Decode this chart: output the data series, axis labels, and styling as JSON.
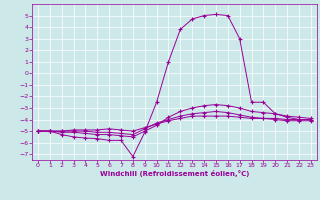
{
  "xlabel": "Windchill (Refroidissement éolien,°C)",
  "xlim": [
    -0.5,
    23.5
  ],
  "ylim": [
    -7.5,
    6.0
  ],
  "yticks": [
    5,
    4,
    3,
    2,
    1,
    0,
    -1,
    -2,
    -3,
    -4,
    -5,
    -6,
    -7
  ],
  "xticks": [
    0,
    1,
    2,
    3,
    4,
    5,
    6,
    7,
    8,
    9,
    10,
    11,
    12,
    13,
    14,
    15,
    16,
    17,
    18,
    19,
    20,
    21,
    22,
    23
  ],
  "bg_color": "#cce8e8",
  "line_color": "#990099",
  "grid_color": "#ffffff",
  "line1_x": [
    0,
    1,
    2,
    3,
    4,
    5,
    6,
    7,
    8,
    9,
    10,
    11,
    12,
    13,
    14,
    15,
    16,
    17,
    18,
    19,
    20,
    21,
    22,
    23
  ],
  "line1_y": [
    -5.0,
    -5.0,
    -5.3,
    -5.5,
    -5.6,
    -5.65,
    -5.8,
    -5.8,
    -7.2,
    -5.1,
    -2.5,
    1.0,
    3.8,
    4.7,
    5.0,
    5.1,
    5.0,
    3.0,
    -2.5,
    -2.5,
    -3.5,
    -3.8,
    -4.0,
    -4.0
  ],
  "line2_x": [
    0,
    1,
    2,
    3,
    4,
    5,
    6,
    7,
    8,
    9,
    10,
    11,
    12,
    13,
    14,
    15,
    16,
    17,
    18,
    19,
    20,
    21,
    22,
    23
  ],
  "line2_y": [
    -5.0,
    -5.0,
    -5.1,
    -5.1,
    -5.2,
    -5.3,
    -5.3,
    -5.4,
    -5.5,
    -5.0,
    -4.5,
    -3.8,
    -3.3,
    -3.0,
    -2.8,
    -2.7,
    -2.8,
    -3.0,
    -3.3,
    -3.4,
    -3.5,
    -3.7,
    -3.8,
    -3.9
  ],
  "line3_x": [
    0,
    1,
    2,
    3,
    4,
    5,
    6,
    7,
    8,
    9,
    10,
    11,
    12,
    13,
    14,
    15,
    16,
    17,
    18,
    19,
    20,
    21,
    22,
    23
  ],
  "line3_y": [
    -5.0,
    -5.0,
    -5.0,
    -5.0,
    -5.0,
    -5.1,
    -5.1,
    -5.2,
    -5.3,
    -4.8,
    -4.3,
    -4.0,
    -3.7,
    -3.5,
    -3.4,
    -3.3,
    -3.4,
    -3.6,
    -3.8,
    -3.9,
    -4.0,
    -4.1,
    -4.1,
    -4.1
  ],
  "line4_x": [
    0,
    1,
    2,
    3,
    4,
    5,
    6,
    7,
    8,
    9,
    10,
    11,
    12,
    13,
    14,
    15,
    16,
    17,
    18,
    19,
    20,
    21,
    22,
    23
  ],
  "line4_y": [
    -5.0,
    -5.0,
    -5.0,
    -4.9,
    -4.9,
    -4.9,
    -4.8,
    -4.9,
    -5.0,
    -4.7,
    -4.4,
    -4.1,
    -3.9,
    -3.7,
    -3.7,
    -3.7,
    -3.7,
    -3.8,
    -3.9,
    -3.9,
    -3.9,
    -4.0,
    -4.0,
    -4.0
  ]
}
